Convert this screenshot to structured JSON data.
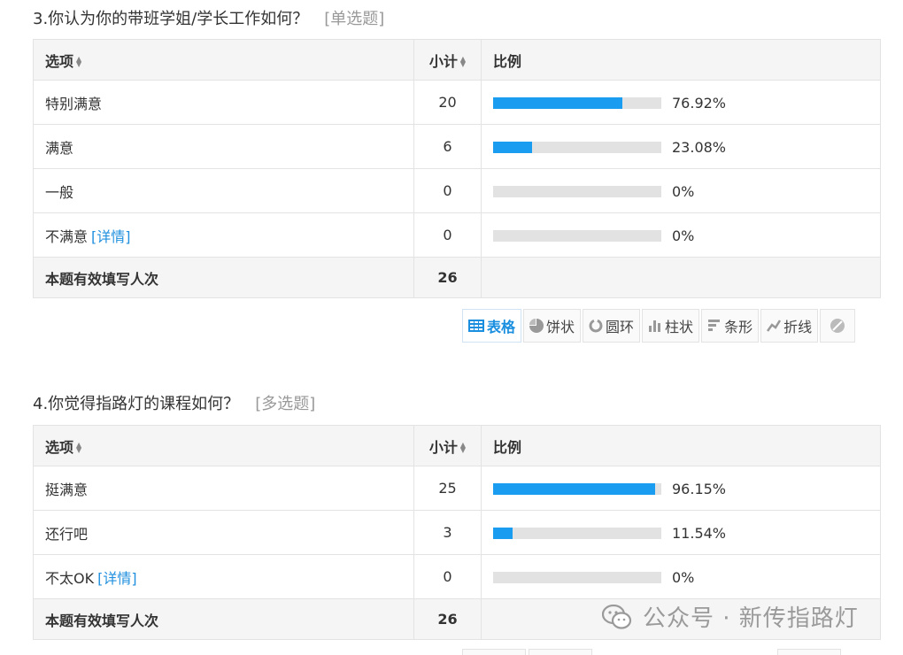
{
  "q3": {
    "title": "3.你认为你的带班学姐/学长工作如何？",
    "type": "[单选题]",
    "headers": {
      "option": "选项",
      "count": "小计",
      "ratio": "比例"
    },
    "rows": [
      {
        "option": "特别满意",
        "count": "20",
        "pct": "76.92%",
        "fill": 0.7692
      },
      {
        "option": "满意",
        "count": "6",
        "pct": "23.08%",
        "fill": 0.2308
      },
      {
        "option": "一般",
        "count": "0",
        "pct": "0%",
        "fill": 0
      },
      {
        "option": "不满意",
        "detail": "[详情]",
        "count": "0",
        "pct": "0%",
        "fill": 0
      }
    ],
    "total": {
      "label": "本题有效填写人次",
      "count": "26"
    }
  },
  "toolbar": {
    "table": "表格",
    "pie": "饼状",
    "ring": "圆环",
    "column": "柱状",
    "bar": "条形",
    "line": "折线"
  },
  "q4": {
    "title": "4.你觉得指路灯的课程如何？",
    "type": "[多选题]",
    "headers": {
      "option": "选项",
      "count": "小计",
      "ratio": "比例"
    },
    "rows": [
      {
        "option": "挺满意",
        "count": "25",
        "pct": "96.15%",
        "fill": 0.9615
      },
      {
        "option": "还行吧",
        "count": "3",
        "pct": "11.54%",
        "fill": 0.1154
      },
      {
        "option": "不太OK",
        "detail": "[详情]",
        "count": "0",
        "pct": "0%",
        "fill": 0
      }
    ],
    "total": {
      "label": "本题有效填写人次",
      "count": "26"
    }
  },
  "watermark": "公众号 · 新传指路灯",
  "colors": {
    "bar_fill": "#1a9cf0",
    "bar_track": "#e2e2e2",
    "link": "#1f8fde"
  }
}
